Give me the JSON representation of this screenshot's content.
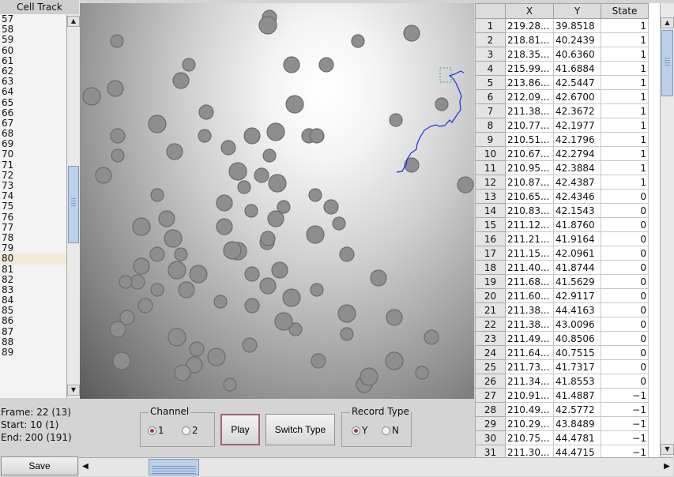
{
  "track_panel": {
    "header": "Cell Track",
    "rows": [
      "57",
      "58",
      "59",
      "60",
      "61",
      "62",
      "63",
      "64",
      "65",
      "66",
      "67",
      "68",
      "69",
      "70",
      "71",
      "72",
      "73",
      "74",
      "75",
      "76",
      "77",
      "78",
      "79",
      "80",
      "81",
      "82",
      "83",
      "84",
      "85",
      "86",
      "87",
      "88",
      "89"
    ],
    "selected": "80"
  },
  "status": {
    "frame": "Frame: 22 (13)",
    "start": "Start: 10 (1)",
    "end": "End: 200 (191)"
  },
  "channel": {
    "title": "Channel",
    "options": [
      "1",
      "2"
    ],
    "selected": "1"
  },
  "play_label": "Play",
  "switch_type_label": "Switch Type",
  "record_type": {
    "title": "Record Type",
    "options": [
      "Y",
      "N"
    ],
    "selected": "Y"
  },
  "table": {
    "columns": [
      "",
      "X",
      "Y",
      "State"
    ],
    "rows": [
      [
        "1",
        "219.28...",
        "39.8518",
        "1"
      ],
      [
        "2",
        "218.81...",
        "40.2439",
        "1"
      ],
      [
        "3",
        "218.35...",
        "40.6360",
        "1"
      ],
      [
        "4",
        "215.99...",
        "41.6884",
        "1"
      ],
      [
        "5",
        "213.86...",
        "42.5447",
        "1"
      ],
      [
        "6",
        "212.09...",
        "42.6700",
        "1"
      ],
      [
        "7",
        "211.38...",
        "42.3672",
        "1"
      ],
      [
        "8",
        "210.77...",
        "42.1977",
        "1"
      ],
      [
        "9",
        "210.51...",
        "42.1796",
        "1"
      ],
      [
        "10",
        "210.67...",
        "42.2794",
        "1"
      ],
      [
        "11",
        "210.95...",
        "42.3884",
        "1"
      ],
      [
        "12",
        "210.87...",
        "42.4387",
        "1"
      ],
      [
        "13",
        "210.65...",
        "42.4346",
        "0"
      ],
      [
        "14",
        "210.83...",
        "42.1543",
        "0"
      ],
      [
        "15",
        "211.12...",
        "41.8760",
        "0"
      ],
      [
        "16",
        "211.21...",
        "41.9164",
        "0"
      ],
      [
        "17",
        "211.15...",
        "42.0961",
        "0"
      ],
      [
        "18",
        "211.40...",
        "41.8744",
        "0"
      ],
      [
        "19",
        "211.68...",
        "41.5629",
        "0"
      ],
      [
        "20",
        "211.60...",
        "42.9117",
        "0"
      ],
      [
        "21",
        "211.38...",
        "44.4163",
        "0"
      ],
      [
        "22",
        "211.38...",
        "43.0096",
        "0"
      ],
      [
        "23",
        "211.49...",
        "40.8506",
        "0"
      ],
      [
        "24",
        "211.64...",
        "40.7515",
        "0"
      ],
      [
        "25",
        "211.73...",
        "41.7317",
        "0"
      ],
      [
        "26",
        "211.34...",
        "41.8553",
        "0"
      ],
      [
        "27",
        "210.91...",
        "41.4887",
        "−1"
      ],
      [
        "28",
        "210.49...",
        "42.5772",
        "−1"
      ],
      [
        "29",
        "210.29...",
        "43.8489",
        "−1"
      ],
      [
        "30",
        "210.75...",
        "44.4781",
        "−1"
      ],
      [
        "31",
        "211.30...",
        "44.4715",
        "−1"
      ]
    ]
  },
  "save_label": "Save",
  "colors": {
    "track_line": "#1a2ee0",
    "selected_row": "#f2ead5"
  }
}
